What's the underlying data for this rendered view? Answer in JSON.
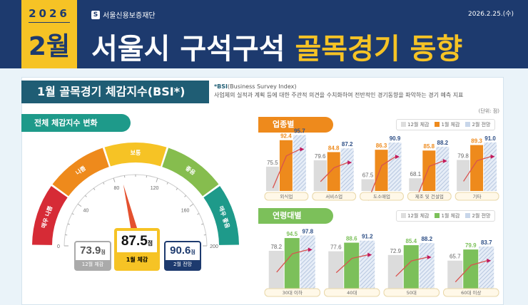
{
  "header": {
    "year": "2026",
    "month": "2월",
    "org": "서울신용보증재단",
    "date": "2026.2.25.(수)",
    "title_white": "서울시 구석구석",
    "title_yellow": "골목경기 동향"
  },
  "section_title": "1월 골목경기 체감지수(BSI*)",
  "note": {
    "term": "*BSI",
    "term_full": "(Business Survey Index)",
    "desc": "사업체의 실적과 계획 등에 대한 주관적 의견을 수치화하여 전반적인 경기동향을 파악하는 경기 예측 지표"
  },
  "unit": "(단위: 점)",
  "gauge": {
    "subtitle": "전체 체감지수 변화",
    "zones": [
      "매우 나쁨",
      "나쁨",
      "보통",
      "좋음",
      "매우 좋음"
    ],
    "zone_colors": [
      "#d62b36",
      "#ee8a1c",
      "#f6c325",
      "#86bd4e",
      "#1e9a8a"
    ],
    "ticks": [
      "0",
      "40",
      "80",
      "120",
      "160",
      "200"
    ],
    "min": 0,
    "max": 200,
    "needle": 87.5,
    "prev": {
      "value": "73.9",
      "unit": "점",
      "label": "12월 체감"
    },
    "current": {
      "value": "87.5",
      "unit": "점",
      "label": "1월 체감"
    },
    "forecast": {
      "value": "90.6",
      "unit": "점",
      "label": "2월 전망"
    }
  },
  "chart_data": [
    {
      "type": "bar",
      "title": "업종별",
      "legend": [
        "12월 체감",
        "1월 체감",
        "2월 전망"
      ],
      "color": "#ee8a1c",
      "categories": [
        "외식업",
        "서비스업",
        "도소매업",
        "제조 및 건설업",
        "기타"
      ],
      "series": [
        {
          "name": "12월 체감",
          "values": [
            75.5,
            79.6,
            67.5,
            68.1,
            79.8
          ]
        },
        {
          "name": "1월 체감",
          "values": [
            92.4,
            84.8,
            86.3,
            85.8,
            89.3
          ]
        },
        {
          "name": "2월 전망",
          "values": [
            95.7,
            87.2,
            90.9,
            88.2,
            91.0
          ]
        }
      ]
    },
    {
      "type": "bar",
      "title": "연령대별",
      "legend": [
        "12월 체감",
        "1월 체감",
        "2월 전망"
      ],
      "color": "#7cc05a",
      "categories": [
        "30대 이하",
        "40대",
        "50대",
        "60대 이상"
      ],
      "series": [
        {
          "name": "12월 체감",
          "values": [
            78.2,
            77.6,
            72.9,
            65.7
          ]
        },
        {
          "name": "1월 체감",
          "values": [
            94.5,
            88.6,
            85.4,
            79.9
          ]
        },
        {
          "name": "2월 전망",
          "values": [
            97.8,
            91.2,
            88.2,
            83.7
          ]
        }
      ]
    }
  ]
}
